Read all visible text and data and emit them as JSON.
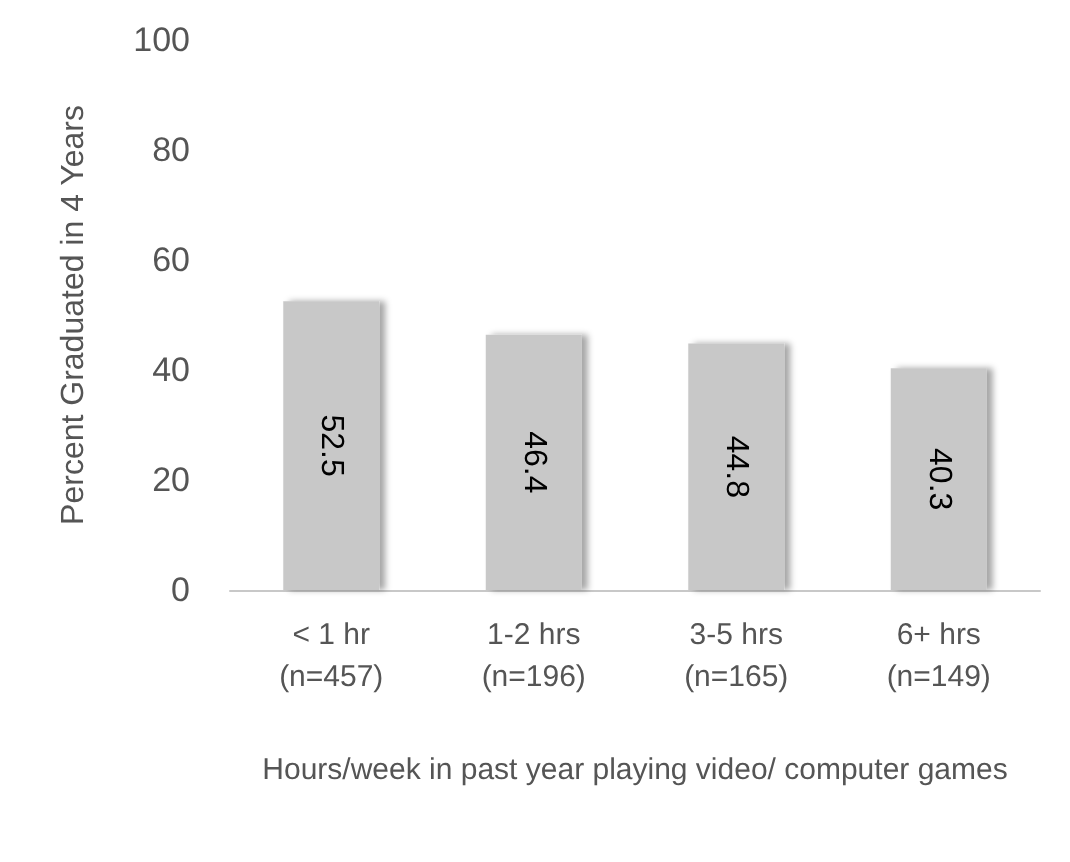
{
  "chart_data": {
    "type": "bar",
    "xlabel": "Hours/week in past year playing video/ computer games",
    "ylabel": "Percent Graduated in 4 Years",
    "categories": [
      "< 1 hr\n(n=457)",
      "1-2 hrs\n(n=196)",
      "3-5 hrs\n(n=165)",
      "6+ hrs\n(n=149)"
    ],
    "values": [
      52.5,
      46.4,
      44.8,
      40.3
    ],
    "color": "#c8c8c8",
    "ylim": [
      0,
      100
    ],
    "yticks": [
      0,
      20,
      40,
      60,
      80,
      100
    ],
    "grid": false,
    "data_labels": true
  }
}
